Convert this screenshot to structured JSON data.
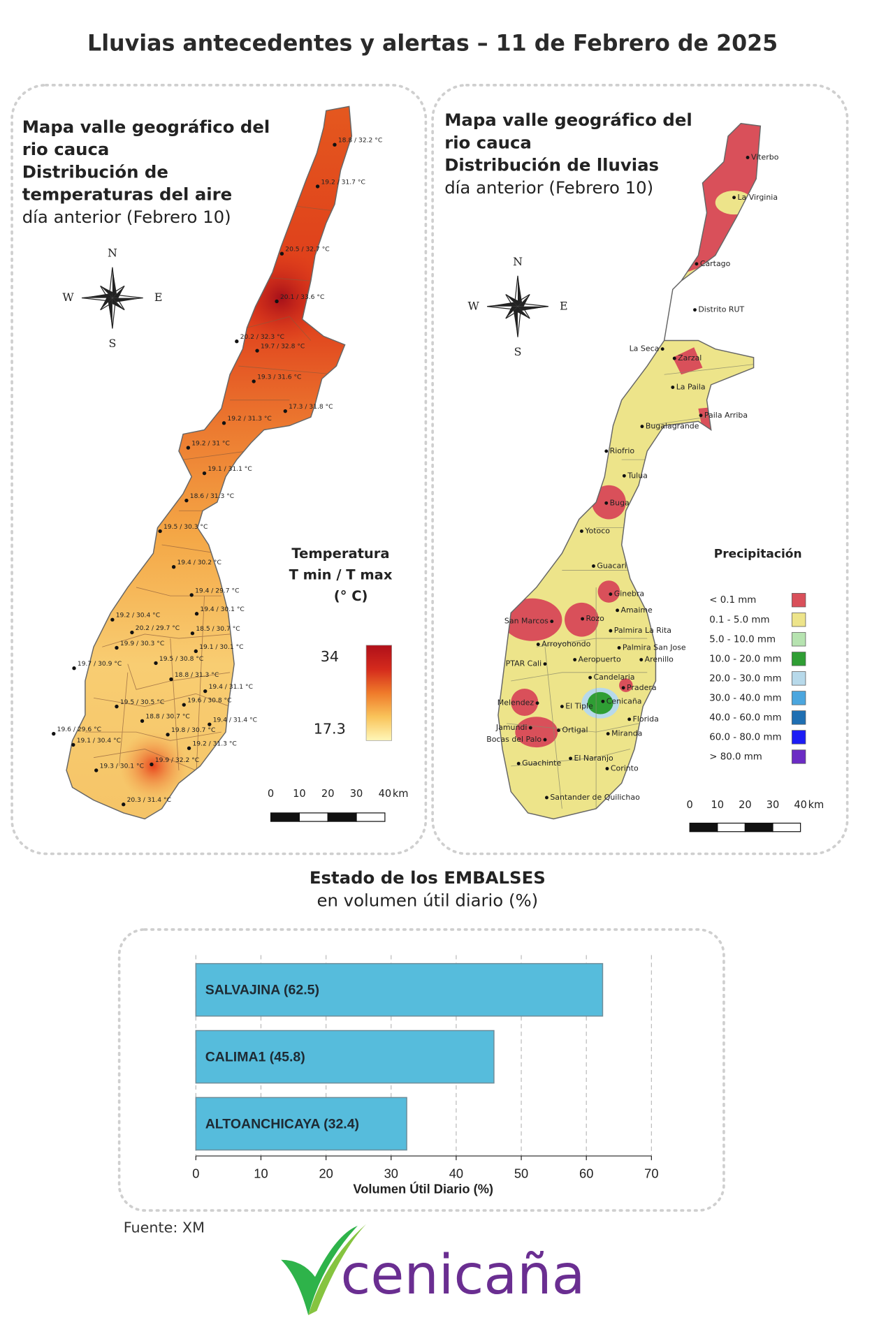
{
  "title": "Lluvias antecedentes y alertas – 11 de Febrero de 2025",
  "temperature_map": {
    "title_lines": [
      "Mapa valle geográfico del",
      "rio cauca",
      "Distribución de",
      "temperaturas del aire",
      "día anterior (Febrero 10)"
    ],
    "compass": {
      "n": "N",
      "s": "S",
      "e": "E",
      "w": "W"
    },
    "stations": [
      "18.8 / 32.2 °C",
      "19.2 / 31.7 °C",
      "20.5 / 32.7 °C",
      "20.1 / 33.6 °C",
      "20.2 / 32.3 °C",
      "19.7 / 32.8 °C",
      "19.3 / 31.6 °C",
      "17.3 / 31.8 °C",
      "19.2 / 31.3 °C",
      "19.2 / 31 °C",
      "19.1 / 31.1 °C",
      "18.6 / 31.3 °C",
      "19.5 / 30.3 °C",
      "19.4 / 30.2 °C",
      "19.4 / 29.7 °C",
      "19.4 / 30.1 °C",
      "19.2 / 30.4 °C",
      "20.2 / 29.7 °C",
      "18.5 / 30.7 °C",
      "19.9 / 30.3 °C",
      "19.1 / 30.1 °C",
      "19.5 / 30.8 °C",
      "19.7 / 30.9 °C",
      "18.8 / 31.3 °C",
      "19.4 / 31.1 °C",
      "19.5 / 30.5 °C",
      "19.6 / 30.8 °C",
      "18.8 / 30.7 °C",
      "19.4 / 31.4 °C",
      "19.6 / 29.6 °C",
      "19.8 / 30.7 °C",
      "19.1 / 30.4 °C",
      "19.2 / 31.3 °C",
      "19.9 / 32.2 °C",
      "19.3 / 30.1 °C",
      "20.3 / 31.4 °C"
    ],
    "legend": {
      "title_lines": [
        "Temperatura",
        "T min / T max",
        "(° C)"
      ],
      "max": 34,
      "min": 17.3,
      "colors": [
        "#fff7b8",
        "#f9c35a",
        "#ef7a2a",
        "#d42a1c",
        "#b0101a"
      ]
    },
    "scale": {
      "ticks": [
        0,
        10,
        20,
        30,
        40
      ],
      "unit": "km"
    }
  },
  "rain_map": {
    "title_lines": [
      "Mapa valle geográfico del",
      "rio cauca",
      "Distribución de lluvias",
      "día anterior (Febrero 10)"
    ],
    "compass": {
      "n": "N",
      "s": "S",
      "e": "E",
      "w": "W"
    },
    "places": [
      "Viterbo",
      "La Virginia",
      "Cartago",
      "Distrito RUT",
      "La Seca",
      "Zarzal",
      "La Paila",
      "Paila Arriba",
      "Bugalagrande",
      "Riofrio",
      "Tulua",
      "Buga",
      "Yotoco",
      "Guacari",
      "Ginebra",
      "San Marcos",
      "Rozo",
      "Amaime",
      "Palmira La Rita",
      "Arroyohondo",
      "Palmira San Jose",
      "PTAR Cali",
      "Aeropuerto",
      "Arenillo",
      "Candelaria",
      "Pradera",
      "Melendez",
      "El Tiple",
      "Cenicaña",
      "Florida",
      "Jamundi",
      "Bocas del Palo",
      "Ortigal",
      "Miranda",
      "Guachinte",
      "El Naranjo",
      "Corinto",
      "Santander de Quilichao"
    ],
    "legend": {
      "title": "Precipitación",
      "classes": [
        {
          "label": "< 0.1 mm",
          "color": "#d9505a"
        },
        {
          "label": "0.1 - 5.0 mm",
          "color": "#ede48a"
        },
        {
          "label": "5.0 - 10.0 mm",
          "color": "#b6e3b0"
        },
        {
          "label": "10.0 - 20.0 mm",
          "color": "#2f9e34"
        },
        {
          "label": "20.0 - 30.0 mm",
          "color": "#b7d9ea"
        },
        {
          "label": "30.0 - 40.0 mm",
          "color": "#4ba6de"
        },
        {
          "label": "40.0 - 60.0 mm",
          "color": "#1f6fb2"
        },
        {
          "label": "60.0 - 80.0 mm",
          "color": "#1c1cf5"
        },
        {
          "label": "> 80.0 mm",
          "color": "#6b2bc4"
        }
      ]
    },
    "scale": {
      "ticks": [
        0,
        10,
        20,
        30,
        40
      ],
      "unit": "km"
    }
  },
  "chart_data": {
    "type": "bar",
    "orientation": "horizontal",
    "title": "Estado de los EMBALSES",
    "subtitle": "en volumen útil diario (%)",
    "categories": [
      "SALVAJINA (62.5)",
      "CALIMA1 (45.8)",
      "ALTOANCHICAYA (32.4)"
    ],
    "values": [
      62.5,
      45.8,
      32.4
    ],
    "color": "#56bcdc",
    "xlabel": "Volumen Útil Diario (%)",
    "xlim": [
      0,
      70
    ],
    "xticks": [
      0,
      10,
      20,
      30,
      40,
      50,
      60,
      70
    ],
    "grid": true
  },
  "footer": {
    "source": "Fuente: XM",
    "logo": "cenicaña"
  }
}
